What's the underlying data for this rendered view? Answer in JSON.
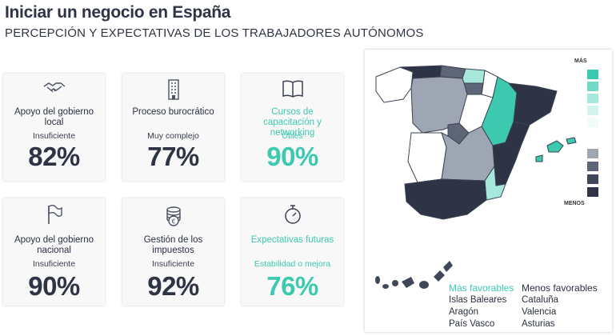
{
  "header": {
    "title": "Iniciar un negocio en España",
    "subtitle": "PERCEPCIÓN Y EXPECTATIVAS DE LOS TRABAJADORES AUTÓNOMOS"
  },
  "cards": [
    {
      "label": "Apoyo del gobierno local",
      "evaluation": "Insuficiente",
      "percent": "82%",
      "icon": "handshake-icon"
    },
    {
      "label": "Proceso burocrático",
      "evaluation": "Muy complejo",
      "percent": "77%",
      "icon": "building-icon"
    },
    {
      "label": "Cursos de capacitación y networking",
      "evaluation": "Útiles",
      "percent": "90%",
      "icon": "book-icon"
    },
    {
      "label": "Apoyo del gobierno nacional",
      "evaluation": "Insuficiente",
      "percent": "90%",
      "icon": "flag-icon"
    },
    {
      "label": "Gestión de los impuestos",
      "evaluation": "Insuficiente",
      "percent": "92%",
      "icon": "coins-icon"
    },
    {
      "label": "Expectativas futuras",
      "evaluation": "Estabilidad o mejora",
      "percent": "76%",
      "icon": "stopwatch-icon"
    }
  ],
  "map": {
    "scale_top_label": "MÁS",
    "scale_bottom_label": "MENOS",
    "scale_colors": [
      "#3cc9b0",
      "#72d9c7",
      "#a6e8dc",
      "#d2f3ee",
      "#f1fbf9",
      "#9ea6b4",
      "#5d6577",
      "#3f4759",
      "#2e3446"
    ],
    "legend": {
      "favorable_title": "Más favorables",
      "favorable": [
        "Islas Baleares",
        "Aragón",
        "País Vasco"
      ],
      "unfavorable_title": "Menos favorables",
      "unfavorable": [
        "Cataluña",
        "Valencia",
        "Asturias"
      ]
    }
  }
}
